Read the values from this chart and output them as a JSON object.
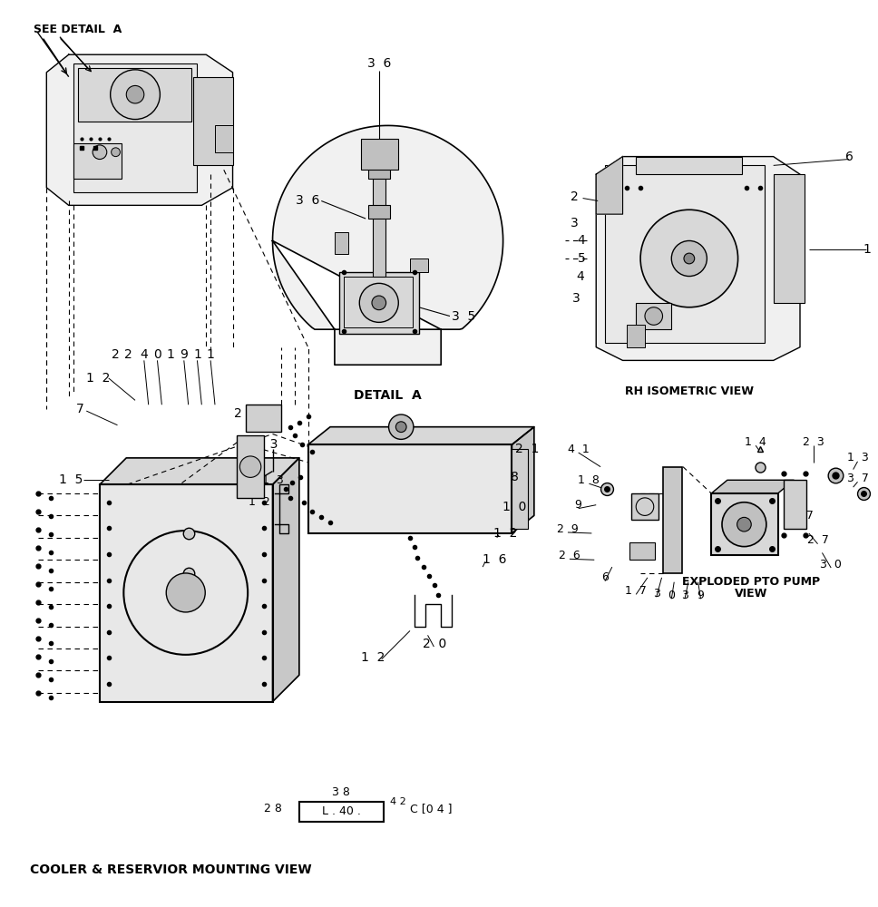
{
  "bg_color": "#ffffff",
  "lc": "#000000",
  "figsize": [
    9.68,
    10.0
  ],
  "dpi": 100,
  "title_see_detail": "SEE DETAIL  A",
  "label_detail_a": "DETAIL  A",
  "label_rh_iso": "RH ISOMETRIC VIEW",
  "label_cooler": "COOLER & RESERVIOR MOUNTING VIEW",
  "label_exploded_1": "EXPLODED PTO PUMP",
  "label_exploded_2": "VIEW",
  "box_text": "L . 40 .",
  "ref_28": "2 8",
  "ref_38": "3 8",
  "ref_42": "4 2",
  "ref_code": "C [0 4 ]"
}
